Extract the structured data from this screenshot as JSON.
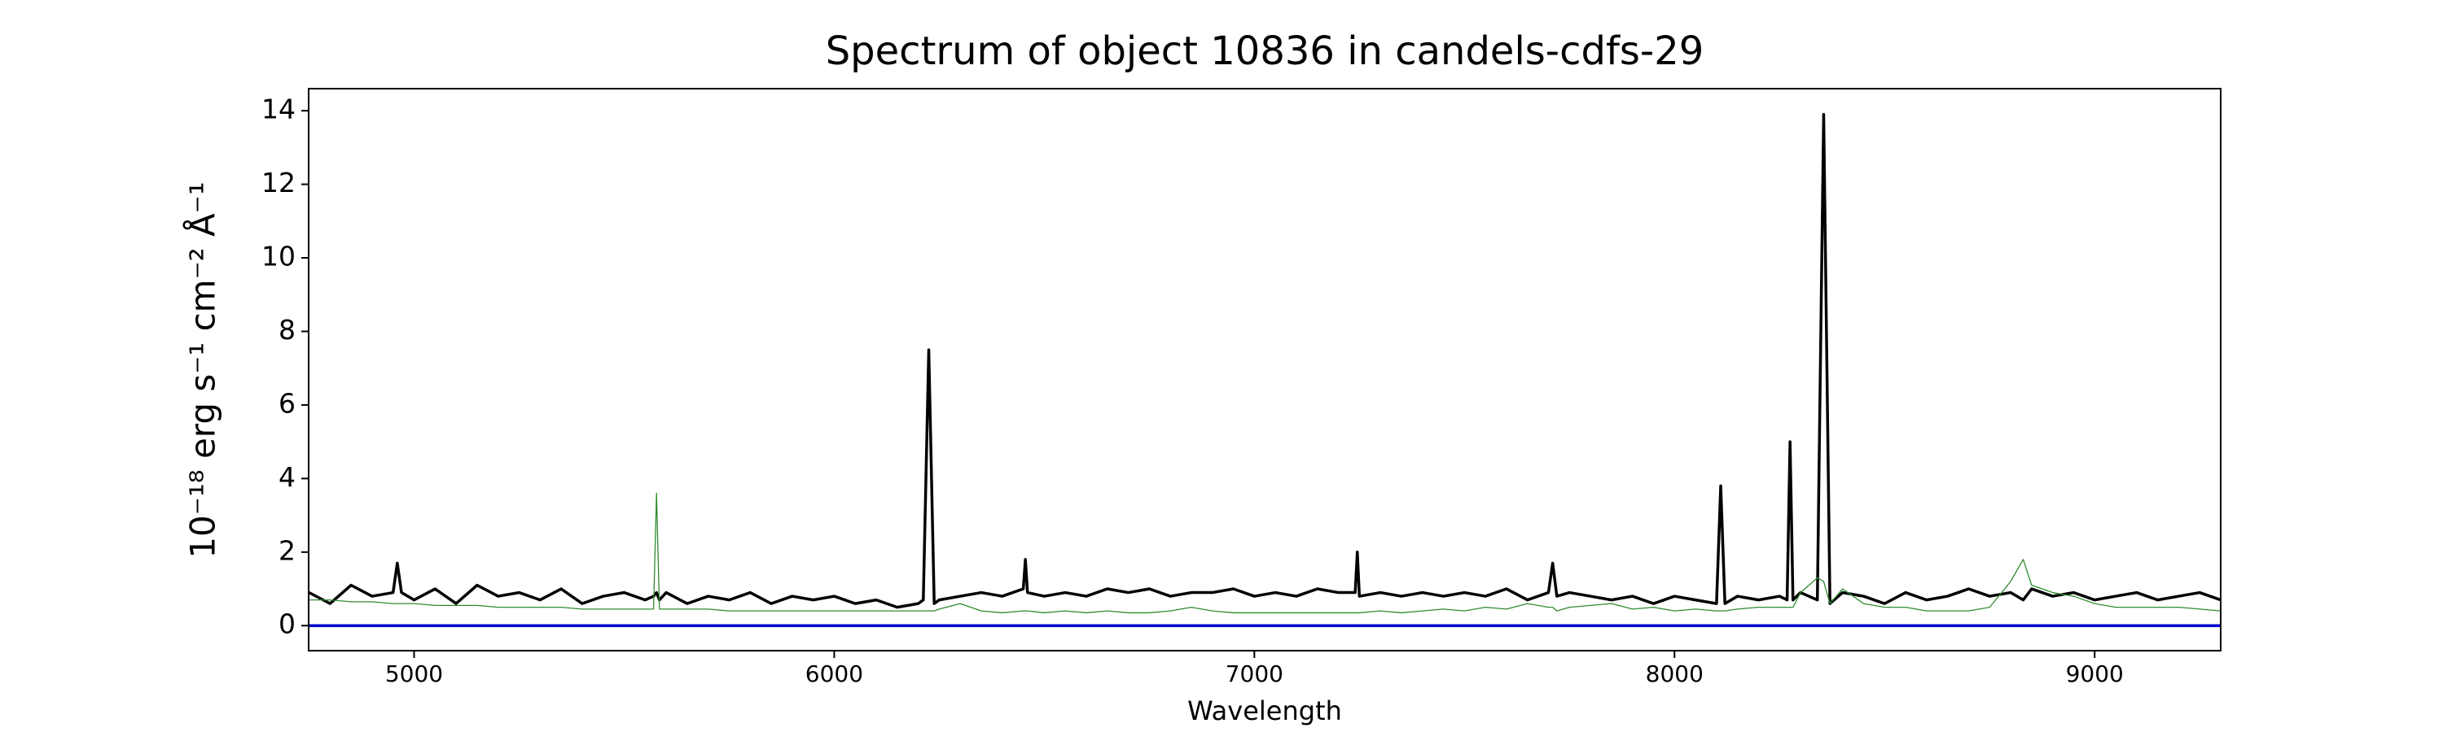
{
  "chart_data": {
    "type": "line",
    "title": "Spectrum of object 10836 in candels-cdfs-29",
    "x_label": "Wavelength",
    "y_label": "10⁻¹⁸ erg s⁻¹ cm⁻² Å⁻¹",
    "x": [
      4750,
      4800,
      4850,
      4900,
      4950,
      4960,
      4970,
      5000,
      5050,
      5100,
      5150,
      5200,
      5250,
      5300,
      5350,
      5400,
      5450,
      5500,
      5550,
      5570,
      5577,
      5584,
      5600,
      5650,
      5700,
      5750,
      5800,
      5850,
      5900,
      5950,
      6000,
      6050,
      6100,
      6150,
      6200,
      6212,
      6225,
      6238,
      6250,
      6300,
      6350,
      6400,
      6450,
      6455,
      6460,
      6500,
      6550,
      6600,
      6650,
      6700,
      6750,
      6800,
      6850,
      6900,
      6950,
      7000,
      7050,
      7100,
      7150,
      7200,
      7240,
      7245,
      7250,
      7300,
      7350,
      7400,
      7450,
      7500,
      7550,
      7600,
      7650,
      7700,
      7710,
      7720,
      7750,
      7800,
      7850,
      7900,
      7950,
      8000,
      8050,
      8100,
      8110,
      8120,
      8150,
      8200,
      8250,
      8268,
      8275,
      8282,
      8300,
      8340,
      8355,
      8370,
      8400,
      8450,
      8500,
      8550,
      8600,
      8650,
      8700,
      8750,
      8800,
      8830,
      8850,
      8900,
      8950,
      9000,
      9050,
      9100,
      9150,
      9200,
      9250,
      9300
    ],
    "series": [
      {
        "color": "#000000",
        "values": [
          0.9,
          0.6,
          1.1,
          0.8,
          0.9,
          1.7,
          0.9,
          0.7,
          1.0,
          0.6,
          1.1,
          0.8,
          0.9,
          0.7,
          1.0,
          0.6,
          0.8,
          0.9,
          0.7,
          0.8,
          0.9,
          0.7,
          0.9,
          0.6,
          0.8,
          0.7,
          0.9,
          0.6,
          0.8,
          0.7,
          0.8,
          0.6,
          0.7,
          0.5,
          0.6,
          0.7,
          7.5,
          0.6,
          0.7,
          0.8,
          0.9,
          0.8,
          1.0,
          1.8,
          0.9,
          0.8,
          0.9,
          0.8,
          1.0,
          0.9,
          1.0,
          0.8,
          0.9,
          0.9,
          1.0,
          0.8,
          0.9,
          0.8,
          1.0,
          0.9,
          0.9,
          2.0,
          0.8,
          0.9,
          0.8,
          0.9,
          0.8,
          0.9,
          0.8,
          1.0,
          0.7,
          0.9,
          1.7,
          0.8,
          0.9,
          0.8,
          0.7,
          0.8,
          0.6,
          0.8,
          0.7,
          0.6,
          3.8,
          0.6,
          0.8,
          0.7,
          0.8,
          0.7,
          5.0,
          0.7,
          0.9,
          0.7,
          13.9,
          0.6,
          0.9,
          0.8,
          0.6,
          0.9,
          0.7,
          0.8,
          1.0,
          0.8,
          0.9,
          0.7,
          1.0,
          0.8,
          0.9,
          0.7,
          0.8,
          0.9,
          0.7,
          0.8,
          0.9,
          0.7
        ]
      },
      {
        "color": "#2e8b2e",
        "values": [
          0.7,
          0.7,
          0.65,
          0.65,
          0.6,
          0.6,
          0.6,
          0.6,
          0.55,
          0.55,
          0.55,
          0.5,
          0.5,
          0.5,
          0.5,
          0.45,
          0.45,
          0.45,
          0.45,
          0.45,
          3.6,
          0.45,
          0.45,
          0.45,
          0.45,
          0.4,
          0.4,
          0.4,
          0.4,
          0.4,
          0.4,
          0.4,
          0.4,
          0.4,
          0.4,
          0.4,
          0.4,
          0.4,
          0.45,
          0.6,
          0.4,
          0.35,
          0.4,
          0.4,
          0.4,
          0.35,
          0.4,
          0.35,
          0.4,
          0.35,
          0.35,
          0.4,
          0.5,
          0.4,
          0.35,
          0.35,
          0.35,
          0.35,
          0.35,
          0.35,
          0.35,
          0.35,
          0.35,
          0.4,
          0.35,
          0.4,
          0.45,
          0.4,
          0.5,
          0.45,
          0.6,
          0.5,
          0.5,
          0.4,
          0.5,
          0.55,
          0.6,
          0.45,
          0.5,
          0.4,
          0.45,
          0.4,
          0.4,
          0.4,
          0.45,
          0.5,
          0.5,
          0.5,
          0.5,
          0.5,
          0.9,
          1.3,
          1.2,
          0.6,
          1.0,
          0.6,
          0.5,
          0.5,
          0.4,
          0.4,
          0.4,
          0.5,
          1.2,
          1.8,
          1.1,
          0.9,
          0.8,
          0.6,
          0.5,
          0.5,
          0.5,
          0.5,
          0.45,
          0.4
        ]
      },
      {
        "color": "#0000cc",
        "values": [
          0,
          0,
          0,
          0,
          0,
          0,
          0,
          0,
          0,
          0,
          0,
          0,
          0,
          0,
          0,
          0,
          0,
          0,
          0,
          0,
          0,
          0,
          0,
          0,
          0,
          0,
          0,
          0,
          0,
          0,
          0,
          0,
          0,
          0,
          0,
          0,
          0,
          0,
          0,
          0,
          0,
          0,
          0,
          0,
          0,
          0,
          0,
          0,
          0,
          0,
          0,
          0,
          0,
          0,
          0,
          0,
          0,
          0,
          0,
          0,
          0,
          0,
          0,
          0,
          0,
          0,
          0,
          0,
          0,
          0,
          0,
          0,
          0,
          0,
          0,
          0,
          0,
          0,
          0,
          0,
          0,
          0,
          0,
          0,
          0,
          0,
          0,
          0,
          0,
          0,
          0,
          0,
          0,
          0,
          0,
          0,
          0,
          0,
          0,
          0,
          0,
          0,
          0,
          0,
          0,
          0,
          0,
          0,
          0,
          0,
          0,
          0,
          0,
          0
        ]
      }
    ],
    "xlim": [
      4749,
      9300
    ],
    "ylim": [
      -0.68,
      14.6
    ],
    "xticks": [
      5000,
      6000,
      7000,
      8000,
      9000
    ],
    "yticks": [
      0,
      2,
      4,
      6,
      8,
      10,
      12,
      14
    ]
  }
}
